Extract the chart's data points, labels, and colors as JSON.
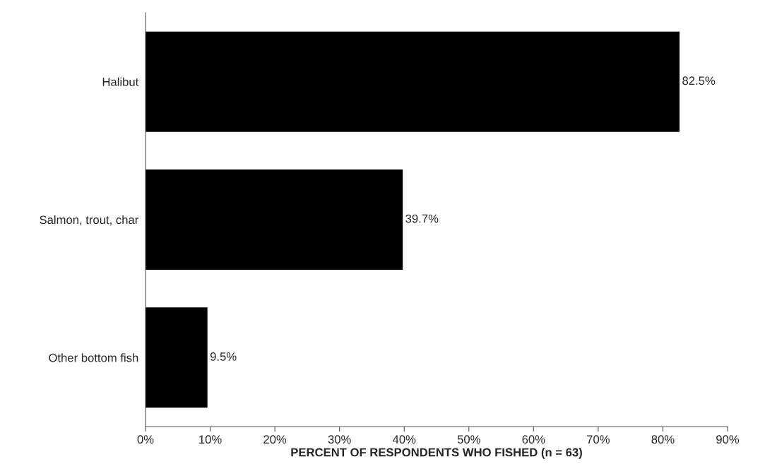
{
  "chart_data": {
    "type": "bar",
    "orientation": "horizontal",
    "xlabel": "PERCENT OF RESPONDENTS WHO FISHED (n = 63)",
    "categories": [
      "Halibut",
      "Salmon, trout, char",
      "Other bottom fish"
    ],
    "values": [
      82.5,
      39.7,
      9.5
    ],
    "color": "#000000",
    "value_labels": [
      "82.5%",
      "39.7%",
      "9.5%"
    ],
    "xlim": [
      0,
      90
    ],
    "xticks": [
      {
        "value": 0,
        "label": "0%"
      },
      {
        "value": 10,
        "label": "10%"
      },
      {
        "value": 20,
        "label": "20%"
      },
      {
        "value": 30,
        "label": "30%"
      },
      {
        "value": 40,
        "label": "40%"
      },
      {
        "value": 50,
        "label": "50%"
      },
      {
        "value": 60,
        "label": "60%"
      },
      {
        "value": 70,
        "label": "70%"
      },
      {
        "value": 80,
        "label": "80%"
      },
      {
        "value": 90,
        "label": "90%"
      }
    ],
    "grid": false,
    "legend": false
  }
}
